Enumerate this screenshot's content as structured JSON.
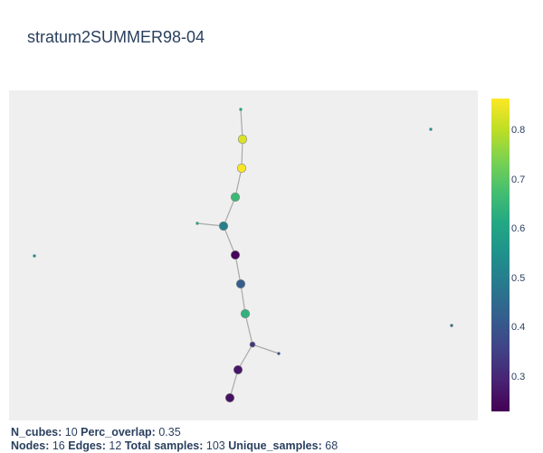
{
  "title": "stratum2SUMMER98-04",
  "colorbar": {
    "colorscale": "Viridis",
    "range": [
      0.23,
      0.865
    ],
    "ticks": [
      {
        "value": 0.8,
        "label": "0.8"
      },
      {
        "value": 0.7,
        "label": "0.7"
      },
      {
        "value": 0.6,
        "label": "0.6"
      },
      {
        "value": 0.5,
        "label": "0.5"
      },
      {
        "value": 0.4,
        "label": "0.4"
      },
      {
        "value": 0.3,
        "label": "0.3"
      }
    ]
  },
  "footer": {
    "n_cubes_label": "N_cubes:",
    "n_cubes_value": "10",
    "perc_overlap_label": "Perc_overlap:",
    "perc_overlap_value": "0.35",
    "nodes_label": "Nodes:",
    "nodes_value": "16",
    "edges_label": "Edges:",
    "edges_value": "12",
    "total_samples_label": "Total samples:",
    "total_samples_value": "103",
    "unique_samples_label": "Unique_samples:",
    "unique_samples_value": "68"
  },
  "graph": {
    "nodes": [
      {
        "id": "n0",
        "value": 0.6,
        "size": "tiny"
      },
      {
        "id": "n1",
        "value": 0.83,
        "size": "large"
      },
      {
        "id": "n2",
        "value": 0.86,
        "size": "large"
      },
      {
        "id": "n3",
        "value": 0.66,
        "size": "large"
      },
      {
        "id": "n4",
        "value": 0.62,
        "size": "tiny"
      },
      {
        "id": "n5",
        "value": 0.5,
        "size": "large"
      },
      {
        "id": "n6",
        "value": 0.24,
        "size": "large"
      },
      {
        "id": "n7",
        "value": 0.42,
        "size": "large"
      },
      {
        "id": "n8",
        "value": 0.64,
        "size": "large"
      },
      {
        "id": "n9",
        "value": 0.33,
        "size": "small"
      },
      {
        "id": "n10",
        "value": 0.38,
        "size": "tiny"
      },
      {
        "id": "n11",
        "value": 0.27,
        "size": "large"
      },
      {
        "id": "n12",
        "value": 0.26,
        "size": "large"
      },
      {
        "id": "n13",
        "value": 0.55,
        "size": "tiny"
      },
      {
        "id": "n14",
        "value": 0.55,
        "size": "tiny"
      },
      {
        "id": "n15",
        "value": 0.45,
        "size": "tiny"
      }
    ],
    "edges": [
      [
        "n0",
        "n1"
      ],
      [
        "n1",
        "n2"
      ],
      [
        "n2",
        "n3"
      ],
      [
        "n3",
        "n5"
      ],
      [
        "n4",
        "n5"
      ],
      [
        "n5",
        "n6"
      ],
      [
        "n6",
        "n7"
      ],
      [
        "n7",
        "n8"
      ],
      [
        "n8",
        "n9"
      ],
      [
        "n9",
        "n10"
      ],
      [
        "n9",
        "n11"
      ],
      [
        "n11",
        "n12"
      ]
    ]
  }
}
